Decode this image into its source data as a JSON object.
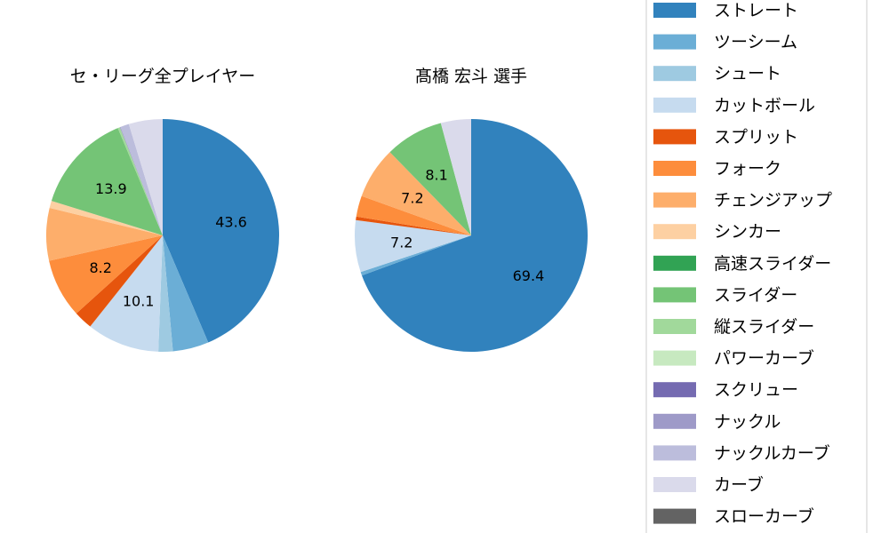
{
  "chart_data": [
    {
      "type": "pie",
      "title": "セ・リーグ全プレイヤー",
      "start_angle": 90,
      "direction": "clockwise",
      "categories": [
        "ストレート",
        "ツーシーム",
        "シュート",
        "カットボール",
        "スプリット",
        "フォーク",
        "チェンジアップ",
        "シンカー",
        "高速スライダー",
        "スライダー",
        "縦スライダー",
        "パワーカーブ",
        "スクリュー",
        "ナックル",
        "ナックルカーブ",
        "カーブ",
        "スローカーブ"
      ],
      "values": [
        43.6,
        5.0,
        2.0,
        10.1,
        2.6,
        8.2,
        7.3,
        1.0,
        0,
        13.9,
        0.3,
        0,
        0,
        0.1,
        1.2,
        4.7,
        0
      ],
      "labels_shown": [
        "43.6",
        "",
        "",
        "10.1",
        "",
        "8.2",
        "",
        "",
        "",
        "13.9",
        "",
        "",
        "",
        "",
        "",
        "",
        ""
      ]
    },
    {
      "type": "pie",
      "title": "髙橋 宏斗  選手",
      "start_angle": 90,
      "direction": "clockwise",
      "categories": [
        "ストレート",
        "ツーシーム",
        "シュート",
        "カットボール",
        "スプリット",
        "フォーク",
        "チェンジアップ",
        "シンカー",
        "高速スライダー",
        "スライダー",
        "縦スライダー",
        "パワーカーブ",
        "スクリュー",
        "ナックル",
        "ナックルカーブ",
        "カーブ",
        "スローカーブ"
      ],
      "values": [
        69.4,
        0.5,
        0,
        7.2,
        0.5,
        2.9,
        7.2,
        0,
        0,
        8.1,
        0,
        0,
        0,
        0,
        0,
        4.2,
        0
      ],
      "labels_shown": [
        "69.4",
        "",
        "",
        "7.2",
        "",
        "",
        "7.2",
        "",
        "",
        "8.1",
        "",
        "",
        "",
        "",
        "",
        "",
        ""
      ]
    }
  ],
  "legend": {
    "placement": "right",
    "entries": [
      "ストレート",
      "ツーシーム",
      "シュート",
      "カットボール",
      "スプリット",
      "フォーク",
      "チェンジアップ",
      "シンカー",
      "高速スライダー",
      "スライダー",
      "縦スライダー",
      "パワーカーブ",
      "スクリュー",
      "ナックル",
      "ナックルカーブ",
      "カーブ",
      "スローカーブ"
    ]
  },
  "colors": [
    "#3182bd",
    "#6baed6",
    "#9ecae1",
    "#c6dbef",
    "#e6550d",
    "#fd8d3c",
    "#fdae6b",
    "#fdd0a2",
    "#31a354",
    "#74c476",
    "#a1d99b",
    "#c7e9c0",
    "#756bb1",
    "#9e9ac8",
    "#bcbddc",
    "#dadaeb",
    "#636363"
  ]
}
